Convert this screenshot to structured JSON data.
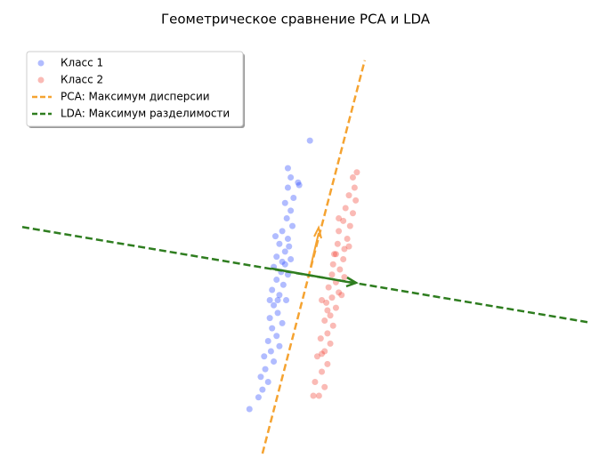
{
  "chart_data": {
    "type": "scatter",
    "title": "Геометрическое сравнение PCA и LDA",
    "axes": false,
    "legend": "upper left",
    "xlim": [
      -5,
      5
    ],
    "ylim": [
      -4,
      4
    ],
    "series": [
      {
        "name": "Класс 1",
        "type": "scatter",
        "color": "#1f3fff",
        "x": [
          0.09,
          -0.3,
          -0.25,
          -0.12,
          -0.1,
          -0.3,
          -0.2,
          -0.35,
          -0.25,
          -0.32,
          -0.22,
          -0.4,
          -0.3,
          -0.45,
          -0.35,
          -0.5,
          -0.4,
          -0.55,
          -0.42,
          -0.3,
          -0.5,
          -0.38,
          -0.58,
          -0.45,
          -0.33,
          -0.55,
          -0.48,
          -0.62,
          -0.4,
          -0.58,
          -0.5,
          -0.65,
          -0.45,
          -0.6,
          -0.72,
          -0.55,
          -0.7,
          -0.78,
          -0.65,
          -0.82,
          -0.98,
          -0.75,
          -0.35,
          -0.28,
          -0.48,
          -0.25,
          -0.52,
          -0.62
        ],
        "y": [
          2.12,
          1.58,
          1.4,
          1.3,
          1.25,
          1.2,
          1.0,
          0.9,
          0.75,
          0.6,
          0.45,
          0.35,
          0.2,
          0.1,
          -0.05,
          -0.15,
          -0.25,
          -0.35,
          -0.45,
          -0.5,
          -0.6,
          -0.7,
          -0.8,
          -0.9,
          -1.0,
          -1.1,
          -1.25,
          -1.35,
          -1.45,
          -1.55,
          -1.7,
          -1.8,
          -1.9,
          -2.0,
          -2.1,
          -2.2,
          -2.35,
          -2.5,
          -2.6,
          -2.9,
          -3.13,
          -2.75,
          -0.3,
          0.05,
          -1.0,
          -0.2,
          0.25,
          -1.0
        ]
      },
      {
        "name": "Класс 2",
        "type": "scatter",
        "color": "#f03a2a",
        "x": [
          0.92,
          0.85,
          0.88,
          0.78,
          0.9,
          0.72,
          0.85,
          0.68,
          0.8,
          0.6,
          0.75,
          0.58,
          0.7,
          0.55,
          0.68,
          0.5,
          0.62,
          0.48,
          0.7,
          0.55,
          0.42,
          0.6,
          0.48,
          0.38,
          0.55,
          0.45,
          0.35,
          0.5,
          0.4,
          0.28,
          0.45,
          0.35,
          0.22,
          0.4,
          0.3,
          0.18,
          0.35,
          0.25,
          0.15,
          0.3,
          0.52,
          0.65,
          0.4,
          0.78,
          0.3,
          0.6
        ],
        "y": [
          1.5,
          1.4,
          1.2,
          1.05,
          0.95,
          0.8,
          0.7,
          0.55,
          0.45,
          0.35,
          0.2,
          0.1,
          0.0,
          -0.1,
          -0.2,
          -0.3,
          -0.4,
          -0.5,
          -0.55,
          -0.65,
          -0.75,
          -0.85,
          -0.95,
          -1.05,
          -1.15,
          -1.3,
          -1.4,
          -1.5,
          -1.65,
          -1.75,
          -1.85,
          -2.0,
          -2.1,
          -2.25,
          -2.4,
          -2.6,
          -2.7,
          -2.87,
          -2.87,
          -2.05,
          -0.1,
          -0.9,
          -1.2,
          0.05,
          -1.0,
          0.6
        ]
      },
      {
        "name": "PCA: Максимум дисперсии",
        "type": "line",
        "dash": true,
        "color": "#f5a331",
        "x": [
          -0.75,
          1.06
        ],
        "y": [
          -4,
          3.69
        ]
      },
      {
        "name": "LDA: Максимум разделимости",
        "type": "line",
        "dash": true,
        "color": "#2e7d1f",
        "x": [
          -5,
          5
        ],
        "y": [
          0.43,
          -1.43
        ]
      }
    ]
  }
}
